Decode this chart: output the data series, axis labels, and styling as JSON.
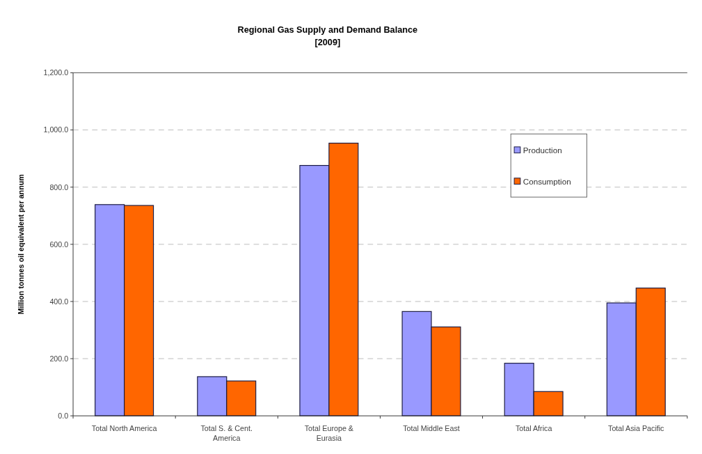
{
  "chart_data": {
    "type": "bar",
    "title": "Regional Gas Supply and Demand Balance",
    "subtitle": "[2009]",
    "ylabel": "Million tonnes oil equivalent per annum",
    "categories": [
      "Total North America",
      "Total S. & Cent. America",
      "Total Europe & Eurasia",
      "Total Middle East",
      "Total Africa",
      "Total Asia Pacific"
    ],
    "series": [
      {
        "name": "Production",
        "color": "#9999ff",
        "values": [
          739,
          137,
          876,
          365,
          184,
          395
        ]
      },
      {
        "name": "Consumption",
        "color": "#ff6600",
        "values": [
          736,
          122,
          954,
          311,
          85,
          447
        ]
      }
    ],
    "ylim": [
      0,
      1200
    ],
    "yticks": [
      {
        "value": 0,
        "label": "0.0"
      },
      {
        "value": 200,
        "label": "200.0"
      },
      {
        "value": 400,
        "label": "400.0"
      },
      {
        "value": 600,
        "label": "600.0"
      },
      {
        "value": 800,
        "label": "800.0"
      },
      {
        "value": 1000,
        "label": "1,000.0"
      },
      {
        "value": 1200,
        "label": "1,200.0"
      }
    ],
    "grid": "y",
    "legend": "top right"
  }
}
